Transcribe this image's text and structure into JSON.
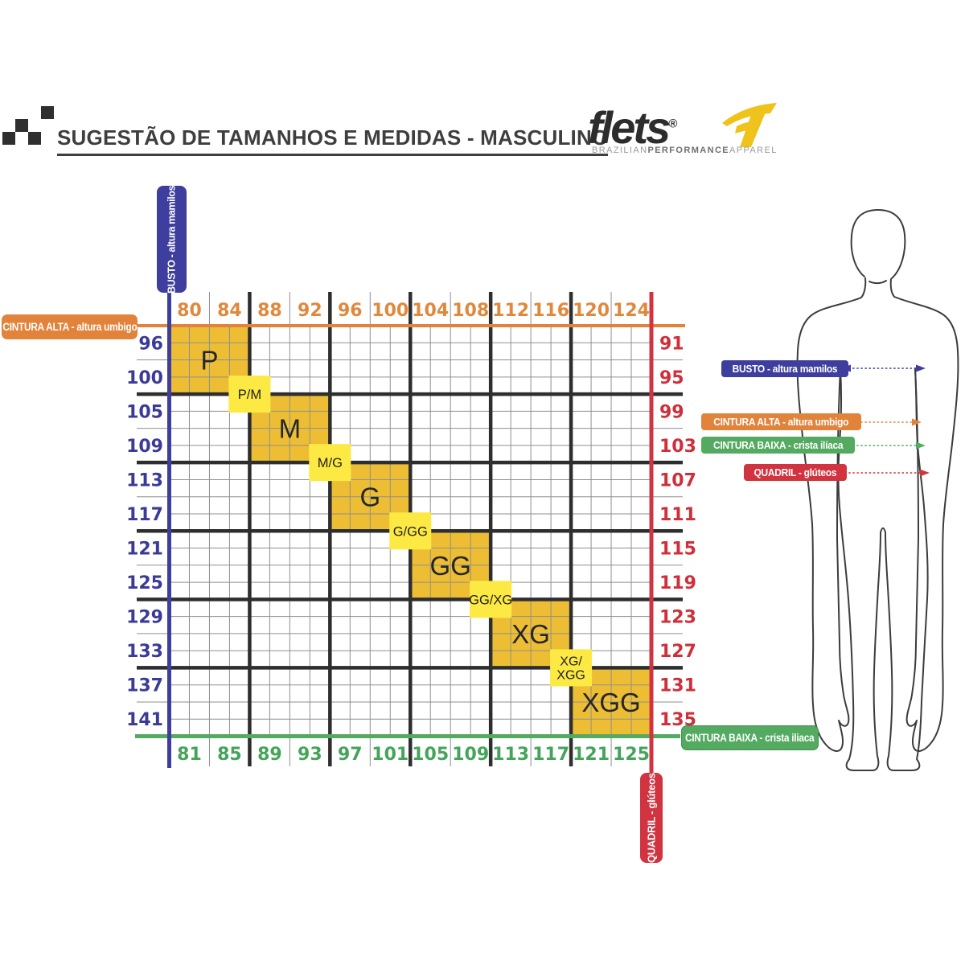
{
  "header": {
    "title": "SUGESTÃO DE TAMANHOS E MEDIDAS - MASCULINO",
    "brand": {
      "name": "flets",
      "registered": "®",
      "tagline": [
        "BRAZILIAN",
        "PERFORMANCE",
        "APPAREL"
      ]
    }
  },
  "colors": {
    "blue": "#3E3E9E",
    "orange": "#E2833C",
    "green": "#53AA60",
    "red": "#D13440",
    "golden_block": "#EDBE33",
    "bright_label": "#FDE943",
    "grid_thin": "#8F8F8F",
    "grid_thick": "#2E2E2E"
  },
  "badges": {
    "busto": "BUSTO - altura mamilos",
    "cintura_alta": "CINTURA ALTA - altura umbigo",
    "cintura_baixa": "CINTURA BAIXA - crista iliaca",
    "quadril": "QUADRIL - glúteos"
  },
  "chart_data": {
    "type": "table",
    "title": "SUGESTÃO DE TAMANHOS E MEDIDAS - MASCULINO",
    "axes": {
      "top": {
        "label": "CINTURA ALTA - altura umbigo",
        "values": [
          80,
          84,
          88,
          92,
          96,
          100,
          104,
          108,
          112,
          116,
          120,
          124
        ],
        "color": "#E0883C"
      },
      "left": {
        "label": "BUSTO - altura mamilos",
        "values": [
          96,
          100,
          105,
          109,
          113,
          117,
          121,
          125,
          129,
          133,
          137,
          141
        ],
        "color": "#3B3B97"
      },
      "right": {
        "label": "QUADRIL - glúteos",
        "values": [
          91,
          95,
          99,
          103,
          107,
          111,
          115,
          119,
          123,
          127,
          131,
          135
        ],
        "color": "#CE2F3A"
      },
      "bottom": {
        "label": "CINTURA BAIXA - crista iliaca",
        "values": [
          81,
          85,
          89,
          93,
          97,
          101,
          105,
          109,
          113,
          117,
          121,
          125
        ],
        "color": "#44A45A"
      }
    },
    "sizes": [
      {
        "label": "P",
        "cintura_alta": [
          80,
          84
        ],
        "busto": [
          96,
          100
        ],
        "quadril": [
          91,
          95
        ],
        "cintura_baixa": [
          81,
          85
        ]
      },
      {
        "label": "M",
        "cintura_alta": [
          88,
          92
        ],
        "busto": [
          105,
          109
        ],
        "quadril": [
          99,
          103
        ],
        "cintura_baixa": [
          89,
          93
        ]
      },
      {
        "label": "G",
        "cintura_alta": [
          96,
          100
        ],
        "busto": [
          113,
          117
        ],
        "quadril": [
          107,
          111
        ],
        "cintura_baixa": [
          97,
          101
        ]
      },
      {
        "label": "GG",
        "cintura_alta": [
          104,
          108
        ],
        "busto": [
          121,
          125
        ],
        "quadril": [
          115,
          119
        ],
        "cintura_baixa": [
          105,
          109
        ]
      },
      {
        "label": "XG",
        "cintura_alta": [
          112,
          116
        ],
        "busto": [
          129,
          133
        ],
        "quadril": [
          123,
          127
        ],
        "cintura_baixa": [
          113,
          117
        ]
      },
      {
        "label": "XGG",
        "cintura_alta": [
          120,
          124
        ],
        "busto": [
          137,
          141
        ],
        "quadril": [
          131,
          135
        ],
        "cintura_baixa": [
          121,
          125
        ]
      }
    ],
    "size_boundaries": [
      [
        "P/M"
      ],
      [
        "M/G"
      ],
      [
        "G/GG"
      ],
      [
        "GG/XG"
      ],
      [
        "XG/",
        "XGG"
      ]
    ]
  },
  "figure": {
    "labels": [
      {
        "text": "BUSTO - altura mamilos",
        "color": "#3E3E9E"
      },
      {
        "text": "CINTURA ALTA - altura umbigo",
        "color": "#E2833C"
      },
      {
        "text": "CINTURA BAIXA - crista ilíaca",
        "color": "#53AA60"
      },
      {
        "text": "QUADRIL - glúteos",
        "color": "#D13440"
      }
    ]
  }
}
